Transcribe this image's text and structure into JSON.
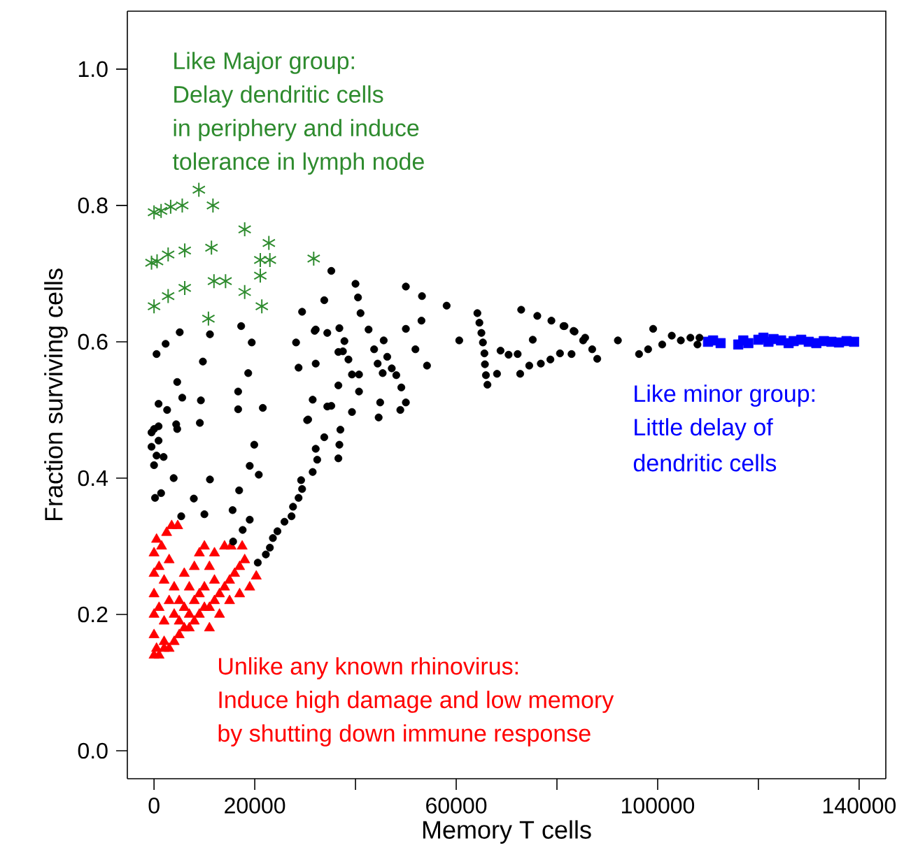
{
  "chart_data": {
    "type": "scatter",
    "xlabel": "Memory T cells",
    "ylabel": "Fraction surviving cells",
    "xlim": [
      -5300,
      145300
    ],
    "ylim": [
      -0.041,
      1.085
    ],
    "xticks": [
      0,
      20000,
      {
        "value": 40000,
        "label": null
      },
      60000,
      {
        "value": 80000,
        "label": null
      },
      100000,
      {
        "value": 120000,
        "label": null
      },
      140000
    ],
    "yticks": [
      {
        "value": 0,
        "label": "0.0"
      },
      {
        "value": 0.2,
        "label": "0.2"
      },
      {
        "value": 0.4,
        "label": "0.4"
      },
      {
        "value": 0.6,
        "label": "0.6"
      },
      {
        "value": 0.8,
        "label": "0.8"
      },
      {
        "value": 1.0,
        "label": "1.0"
      }
    ],
    "series": [
      {
        "color": "#2e8b2e",
        "marker": "cross",
        "x": [
          0,
          1400,
          3300,
          5600,
          8900,
          11700,
          -500,
          600,
          2800,
          6100,
          11400,
          18000,
          22800,
          23000,
          21100,
          31700,
          0,
          2800,
          6100,
          11900,
          14200,
          18000,
          21100,
          21400,
          10800
        ],
        "values": [
          0.79,
          0.792,
          0.798,
          0.8,
          0.823,
          0.8,
          0.716,
          0.718,
          0.728,
          0.734,
          0.738,
          0.765,
          0.745,
          0.72,
          0.72,
          0.722,
          0.652,
          0.667,
          0.679,
          0.689,
          0.689,
          0.673,
          0.697,
          0.652,
          0.634
        ]
      },
      {
        "color": "#ff0000",
        "marker": "triangle",
        "x": [
          0,
          500,
          1000,
          2000,
          3000,
          4000,
          5000,
          6000,
          7000,
          8000,
          9000,
          10000,
          11000,
          12000,
          13000,
          14000,
          15000,
          16000,
          17000,
          18000,
          20300,
          0,
          0,
          0,
          0,
          0,
          500,
          1500,
          2500,
          3500,
          4700,
          1000,
          2000,
          3000,
          4000,
          5000,
          6000,
          7000,
          8000,
          9000,
          10000,
          11000,
          12000,
          14000,
          15300,
          17500,
          1000,
          2000,
          3000,
          4000,
          6000,
          8000,
          10000,
          12000,
          2000,
          5000,
          7000,
          9000,
          11000,
          13000,
          15000,
          17000,
          19000
        ],
        "values": [
          0.14,
          0.15,
          0.14,
          0.15,
          0.15,
          0.16,
          0.17,
          0.18,
          0.18,
          0.19,
          0.2,
          0.21,
          0.21,
          0.22,
          0.23,
          0.24,
          0.25,
          0.26,
          0.27,
          0.28,
          0.256,
          0.17,
          0.2,
          0.23,
          0.26,
          0.29,
          0.31,
          0.3,
          0.32,
          0.33,
          0.33,
          0.27,
          0.25,
          0.28,
          0.24,
          0.22,
          0.26,
          0.24,
          0.27,
          0.29,
          0.3,
          0.27,
          0.29,
          0.3,
          0.3,
          0.3,
          0.21,
          0.19,
          0.22,
          0.2,
          0.21,
          0.22,
          0.24,
          0.25,
          0.16,
          0.19,
          0.2,
          0.23,
          0.18,
          0.2,
          0.22,
          0.23,
          0.24
        ]
      },
      {
        "color": "#0000ff",
        "marker": "square",
        "x": [
          110000,
          111000,
          112500,
          116000,
          117000,
          118000,
          120000,
          121000,
          122000,
          123000,
          124500,
          126000,
          127000,
          128500,
          130000,
          131500,
          133000,
          134500,
          136000,
          137500,
          139000
        ],
        "values": [
          0.6,
          0.602,
          0.598,
          0.596,
          0.602,
          0.598,
          0.603,
          0.606,
          0.6,
          0.604,
          0.602,
          0.598,
          0.601,
          0.603,
          0.6,
          0.598,
          0.601,
          0.6,
          0.599,
          0.601,
          0.6
        ]
      },
      {
        "color": "#000000",
        "marker": "circle",
        "x": [
          35200,
          40000,
          40500,
          41000,
          33800,
          29400,
          32100,
          34400,
          36800,
          28200,
          28700,
          32100,
          36600,
          37800,
          38600,
          39300,
          40700,
          36600,
          40700,
          42600,
          43700,
          44400,
          45400,
          45600,
          46300,
          47200,
          48100,
          49100,
          50000,
          48900,
          44900,
          44600,
          50000,
          50000,
          53200,
          53100,
          51900,
          54200,
          58100,
          60600,
          64200,
          64600,
          65000,
          65300,
          65600,
          65700,
          65900,
          66200,
          68100,
          68800,
          70400,
          72200,
          72700,
          74500,
          75200,
          72900,
          76100,
          78900,
          76800,
          78700,
          81300,
          80600,
          82900,
          83500,
          85600,
          31500,
          30400,
          33800,
          35200,
          37000,
          36800,
          36600,
          32100,
          32400,
          31500,
          29200,
          29400,
          28700,
          27600,
          27300,
          25900,
          24500,
          23600,
          23000,
          22200,
          20600,
          15700,
          17600,
          19000,
          15600,
          10000,
          5400,
          7900,
          16900,
          200,
          1400,
          11100,
          3900,
          19000,
          20800,
          0,
          500,
          1900,
          19900,
          -500,
          900,
          -500,
          900,
          4600,
          4400,
          9100,
          2600,
          5600,
          9300,
          16700,
          21600,
          900,
          16700,
          5100,
          11100,
          17300,
          19400,
          2300,
          500,
          9700,
          18700,
          4600,
          0,
          31900,
          37500,
          34400,
          30600,
          39300,
          81500,
          83300,
          85200,
          87000,
          88000,
          92100,
          96300,
          98100,
          99100,
          100900,
          102800,
          104600,
          106500,
          107900,
          108300
        ],
        "values": [
          0.704,
          0.685,
          0.665,
          0.642,
          0.661,
          0.644,
          0.618,
          0.613,
          0.62,
          0.599,
          0.562,
          0.568,
          0.585,
          0.601,
          0.574,
          0.552,
          0.552,
          0.536,
          0.527,
          0.618,
          0.589,
          0.568,
          0.554,
          0.602,
          0.578,
          0.561,
          0.551,
          0.533,
          0.511,
          0.5,
          0.511,
          0.489,
          0.619,
          0.681,
          0.667,
          0.631,
          0.589,
          0.565,
          0.653,
          0.602,
          0.642,
          0.628,
          0.613,
          0.599,
          0.583,
          0.567,
          0.551,
          0.537,
          0.553,
          0.587,
          0.581,
          0.582,
          0.553,
          0.565,
          0.603,
          0.647,
          0.638,
          0.631,
          0.568,
          0.574,
          0.623,
          0.583,
          0.582,
          0.615,
          0.606,
          0.515,
          0.485,
          0.46,
          0.506,
          0.471,
          0.449,
          0.429,
          0.443,
          0.427,
          0.409,
          0.397,
          0.384,
          0.371,
          0.358,
          0.344,
          0.336,
          0.322,
          0.312,
          0.298,
          0.288,
          0.276,
          0.307,
          0.324,
          0.339,
          0.353,
          0.347,
          0.344,
          0.37,
          0.382,
          0.371,
          0.378,
          0.398,
          0.4,
          0.418,
          0.405,
          0.419,
          0.433,
          0.431,
          0.449,
          0.446,
          0.455,
          0.467,
          0.476,
          0.472,
          0.479,
          0.481,
          0.5,
          0.518,
          0.514,
          0.501,
          0.503,
          0.509,
          0.527,
          0.614,
          0.611,
          0.623,
          0.599,
          0.597,
          0.582,
          0.571,
          0.554,
          0.541,
          0.472,
          0.616,
          0.586,
          0.505,
          0.486,
          0.497,
          0.623,
          0.616,
          0.602,
          0.589,
          0.575,
          0.602,
          0.582,
          0.589,
          0.619,
          0.596,
          0.609,
          0.602,
          0.606,
          0.596,
          0.606
        ]
      }
    ],
    "annotations": [
      "Like Major group:",
      "Delay dendritic cells",
      "in periphery and induce",
      "tolerance in lymph node",
      "Unlike any known rhinovirus:",
      "Induce high damage and low memory",
      "by shutting down immune response",
      "Like minor group:",
      "Little delay of",
      "dendritic cells"
    ]
  }
}
